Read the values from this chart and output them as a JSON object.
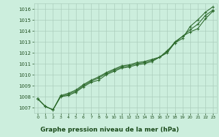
{
  "x": [
    0,
    1,
    2,
    3,
    4,
    5,
    6,
    7,
    8,
    9,
    10,
    11,
    12,
    13,
    14,
    15,
    16,
    17,
    18,
    19,
    20,
    21,
    22,
    23
  ],
  "series1": [
    1007.8,
    1007.1,
    1006.8,
    1008.1,
    1008.3,
    1008.6,
    1009.1,
    1009.5,
    1009.8,
    1010.2,
    1010.5,
    1010.8,
    1010.9,
    1011.1,
    1011.2,
    1011.4,
    1011.6,
    1012.0,
    1012.9,
    1013.3,
    1014.4,
    1015.0,
    1015.7,
    1016.2
  ],
  "series2": [
    1007.8,
    1007.1,
    1006.8,
    1008.0,
    1008.2,
    1008.5,
    1009.0,
    1009.4,
    1009.7,
    1010.1,
    1010.4,
    1010.7,
    1010.8,
    1011.0,
    1011.1,
    1011.3,
    1011.6,
    1012.1,
    1013.0,
    1013.5,
    1014.1,
    1014.6,
    1015.4,
    1015.9
  ],
  "series3": [
    1007.8,
    1007.1,
    1006.8,
    1008.0,
    1008.1,
    1008.4,
    1008.9,
    1009.3,
    1009.5,
    1010.0,
    1010.3,
    1010.6,
    1010.7,
    1010.9,
    1011.0,
    1011.2,
    1011.6,
    1012.2,
    1012.9,
    1013.5,
    1013.9,
    1014.2,
    1015.1,
    1015.8
  ],
  "line_color": "#2d6a2d",
  "bg_color": "#cceedd",
  "grid_color": "#aaccbb",
  "xlabel": "Graphe pression niveau de la mer (hPa)",
  "xlabel_color": "#1a4a1a",
  "xlabel_bg": "#55aa55",
  "tick_label_color": "#1a4a1a",
  "ylim": [
    1006.5,
    1016.5
  ],
  "xlim": [
    -0.5,
    23.5
  ],
  "yticks": [
    1007,
    1008,
    1009,
    1010,
    1011,
    1012,
    1013,
    1014,
    1015,
    1016
  ],
  "xticks": [
    0,
    1,
    2,
    3,
    4,
    5,
    6,
    7,
    8,
    9,
    10,
    11,
    12,
    13,
    14,
    15,
    16,
    17,
    18,
    19,
    20,
    21,
    22,
    23
  ],
  "marker": "+",
  "markersize": 3.5,
  "linewidth": 0.8
}
